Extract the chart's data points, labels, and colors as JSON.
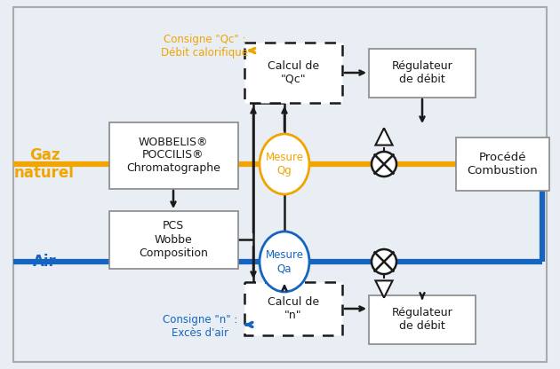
{
  "bg_color": "#e8eef4",
  "yellow_color": "#F0A500",
  "blue_color": "#1565C0",
  "black_color": "#1a1a1a",
  "gray_color": "#888888",
  "box_fill": "#ffffff",
  "gaz_label": "Gaz\nnaturel",
  "air_label": "Air",
  "consigne_qc_label": "Consigne \"Qc\" :\nDébit calorifique",
  "consigne_n_label": "Consigne \"n\" :\nExcès d'air",
  "wobbelis_label": "WOBBELIS®\nPOCCILIS®\nChromatographe",
  "pcs_label": "PCS\nWobbe\nComposition",
  "calcul_qc_label": "Calcul de\n\"Qc\"",
  "calcul_n_label": "Calcul de\n\"n\"",
  "regulateur_top_label": "Régulateur\nde débit",
  "regulateur_bot_label": "Régulateur\nde débit",
  "procede_label": "Procédé\nCombustion",
  "mesure_qg_label": "Mesure\nQg",
  "mesure_qa_label": "Mesure\nQa"
}
